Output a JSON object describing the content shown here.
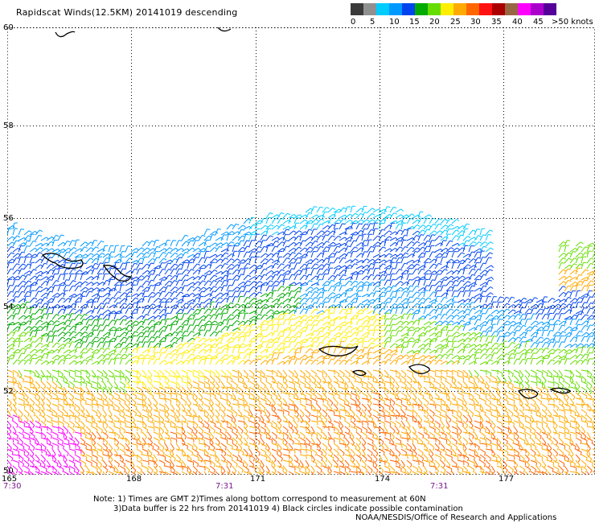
{
  "title": "Rapidscat Winds(12.5KM) 20141019 descending",
  "legend": {
    "colors": [
      "#3a3a3a",
      "#909090",
      "#00ccff",
      "#0099ff",
      "#0044ee",
      "#00aa00",
      "#66dd00",
      "#ffee00",
      "#ffaa00",
      "#ff6600",
      "#ff1111",
      "#aa0000",
      "#996644",
      "#ff00ff",
      "#aa00cc",
      "#550099"
    ],
    "labels": [
      "0",
      "5",
      "10",
      "15",
      "20",
      "25",
      "30",
      "35",
      "40",
      "45",
      ">50 knots"
    ]
  },
  "map": {
    "lat_labels": [
      "60",
      "58",
      "56",
      "54",
      "52",
      "50"
    ],
    "lon_labels": [
      "165",
      "168",
      "171",
      "174",
      "177"
    ],
    "time_labels": [
      "7:30",
      "7:31",
      "7:31"
    ]
  },
  "notes": {
    "line1": "Note: 1) Times are GMT 2)Times along bottom correspond to measurement at 60N",
    "line2": "3)Data buffer is 22 hrs from 20141019 4) Black circles indicate possible contamination",
    "credit": "NOAA/NESDIS/Office of Research and Applications"
  }
}
